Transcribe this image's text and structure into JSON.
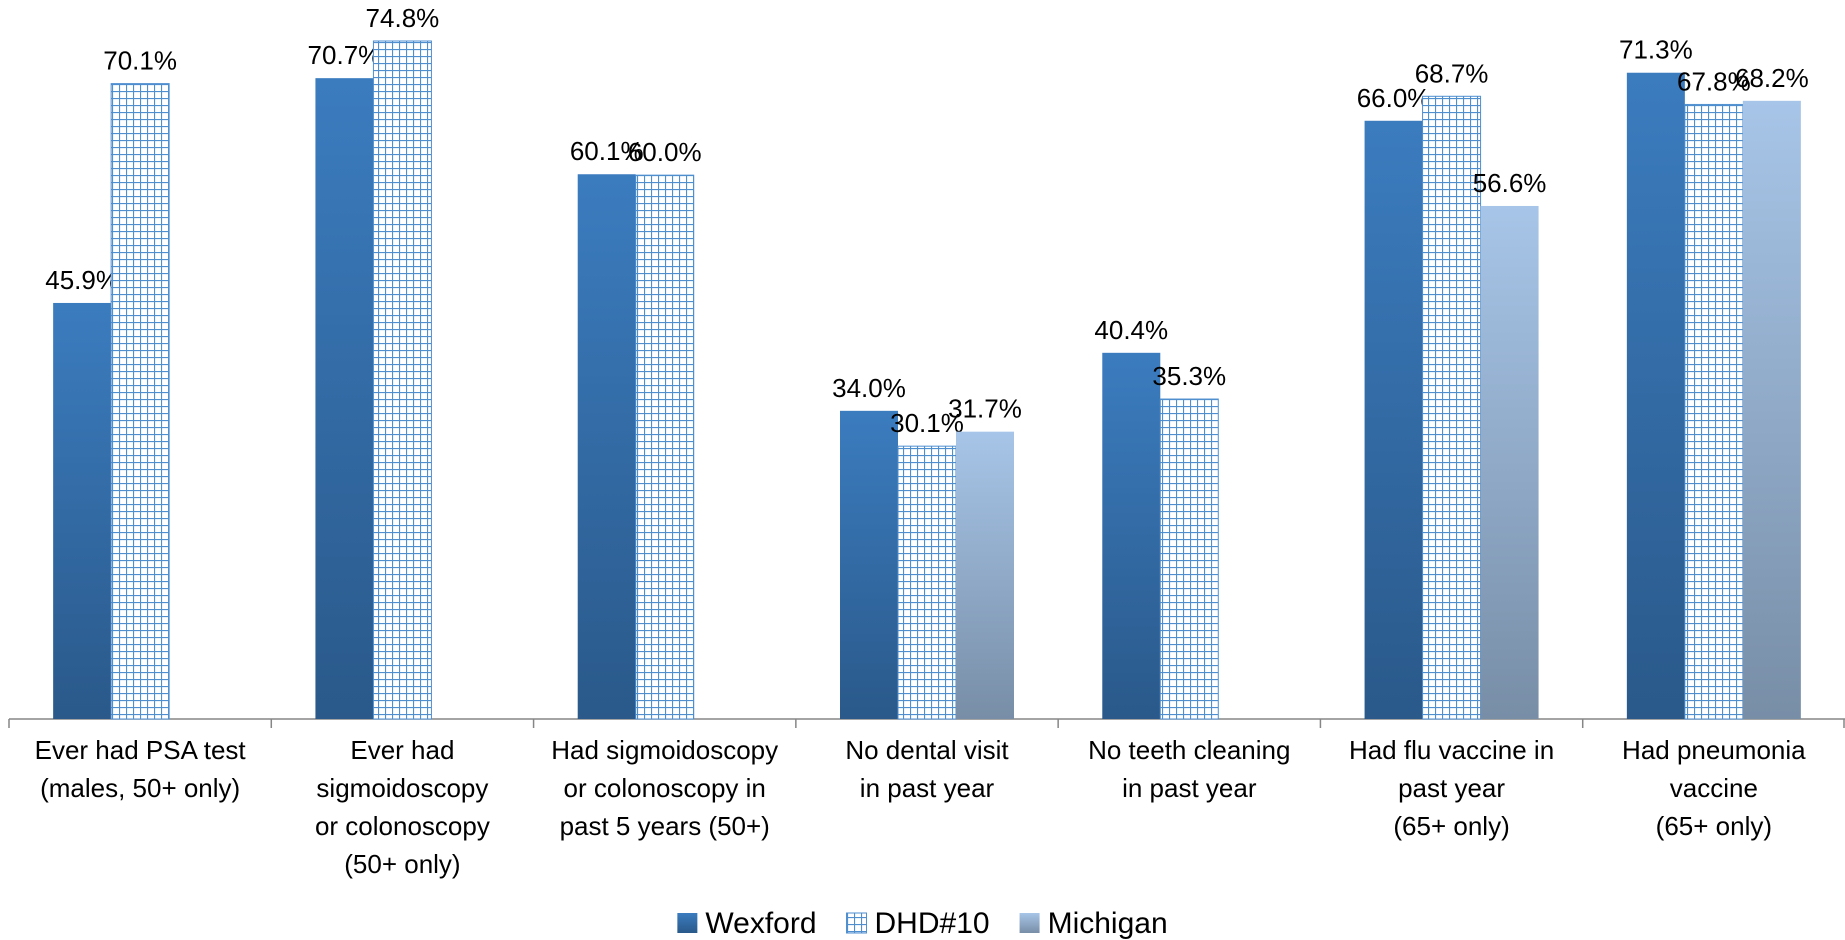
{
  "chart_data": {
    "type": "bar",
    "categories": [
      "Ever had PSA test\n(males, 50+ only)",
      "Ever had\nsigmoidoscopy\nor colonoscopy\n(50+ only)",
      "Had sigmoidoscopy\nor colonoscopy in\npast 5 years (50+)",
      "No dental visit\nin past year",
      "No teeth cleaning\nin past year",
      "Had flu vaccine in\npast year\n(65+ only)",
      "Had pneumonia\nvaccine\n(65+ only)"
    ],
    "series": [
      {
        "name": "Wexford",
        "color": "#3b7cbf",
        "values": [
          45.9,
          70.7,
          60.1,
          34.0,
          40.4,
          66.0,
          71.3
        ],
        "value_labels": [
          "45.9%",
          "70.7%",
          "60.1%",
          "34.0%",
          "40.4%",
          "66.0%",
          "71.3%"
        ]
      },
      {
        "name": "DHD#10",
        "color": "#4f8fd0",
        "pattern": "grid",
        "values": [
          70.1,
          74.8,
          60.0,
          30.1,
          35.3,
          68.7,
          67.8
        ],
        "value_labels": [
          "70.1%",
          "74.8%",
          "60.0%",
          "30.1%",
          "35.3%",
          "68.7%",
          "67.8%"
        ]
      },
      {
        "name": "Michigan",
        "color": "#a7c5e8",
        "values": [
          null,
          null,
          null,
          31.7,
          null,
          56.6,
          68.2
        ],
        "value_labels": [
          null,
          null,
          null,
          "31.7%",
          null,
          "56.6%",
          "68.2%"
        ]
      }
    ],
    "ylim": [
      0,
      78
    ],
    "legend": "bottom"
  }
}
